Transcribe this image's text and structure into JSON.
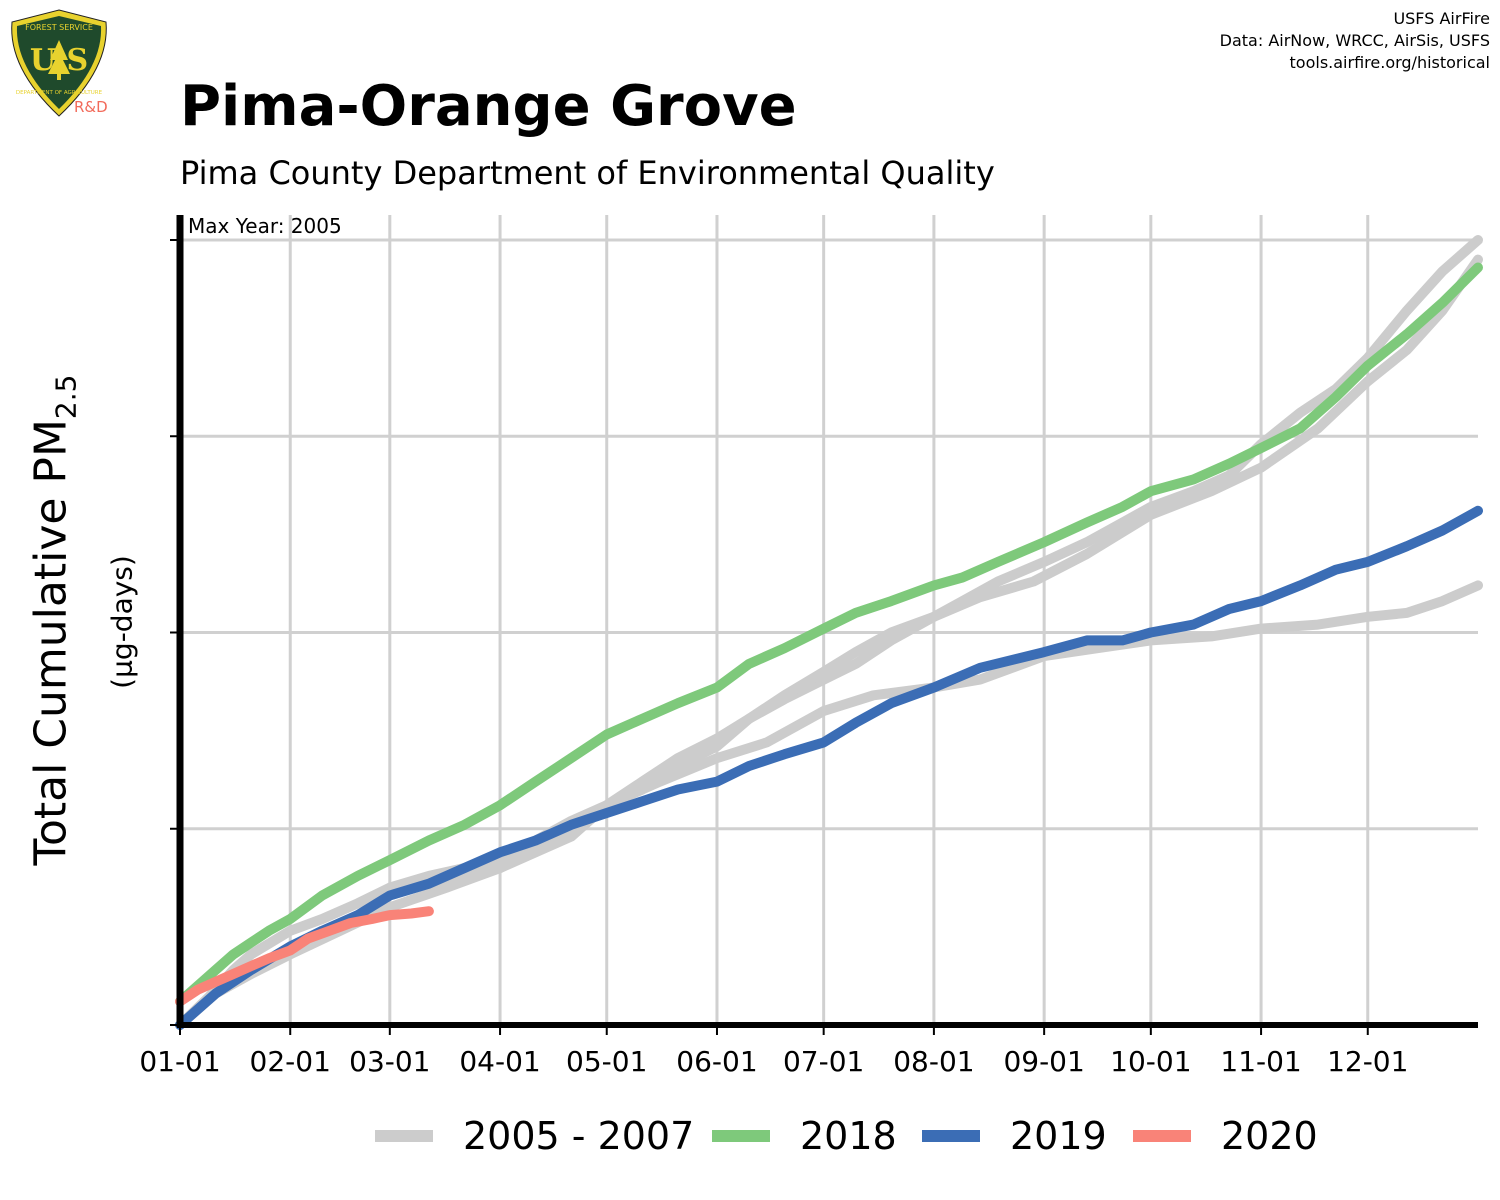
{
  "header": {
    "title": "Pima-Orange Grove",
    "subtitle": "Pima County Department of Environmental Quality"
  },
  "logo": {
    "top_text": "FOREST SERVICE",
    "initials": "U S",
    "bottom_text": "DEPARTMENT OF AGRICULTURE",
    "badge": "R&D",
    "shield_color": "#1f4a2c",
    "border_color": "#e8d22e"
  },
  "credits": {
    "line1": "USFS AirFire",
    "line2": "Data: AirNow, WRCC, AirSis, USFS",
    "line3": "tools.airfire.org/historical"
  },
  "axis": {
    "ylabel_main": "Total Cumulative PM",
    "ylabel_sub": "2.5",
    "yunits": "(µg-days)"
  },
  "chart_data": {
    "type": "line",
    "annotation": "Max Year: 2005",
    "x_tick_labels": [
      "01-01",
      "02-01",
      "03-01",
      "04-01",
      "05-01",
      "06-01",
      "07-01",
      "08-01",
      "09-01",
      "10-01",
      "11-01",
      "12-01"
    ],
    "x_tick_days": [
      0,
      31,
      59,
      90,
      120,
      151,
      181,
      212,
      243,
      273,
      304,
      334
    ],
    "xlim_days": [
      0,
      365
    ],
    "y_tick_labels": [
      "",
      "",
      "",
      "",
      ""
    ],
    "y_ticks_relative": [
      0,
      0.25,
      0.5,
      0.75,
      1.0
    ],
    "ylim_relative": [
      0,
      1.03
    ],
    "y_values_note": "",
    "grid": true,
    "legend_position": "bottom",
    "series": [
      {
        "name": "2005 - 2007",
        "color": "#cccccc",
        "lines": [
          {
            "x": [
              0,
              8,
              15,
              20,
              31,
              40,
              50,
              59,
              70,
              80,
              90,
              100,
              110,
              120,
              130,
              140,
              151,
              160,
              170,
              181,
              190,
              200,
              212,
              220,
              230,
              243,
              255,
              265,
              273,
              285,
              295,
              304,
              315,
              325,
              334,
              345,
              355,
              365
            ],
            "y": [
              0.0,
              0.035,
              0.07,
              0.09,
              0.12,
              0.135,
              0.155,
              0.175,
              0.19,
              0.2,
              0.21,
              0.235,
              0.26,
              0.28,
              0.31,
              0.34,
              0.365,
              0.39,
              0.415,
              0.44,
              0.46,
              0.49,
              0.52,
              0.54,
              0.565,
              0.59,
              0.615,
              0.64,
              0.66,
              0.68,
              0.7,
              0.74,
              0.78,
              0.81,
              0.85,
              0.91,
              0.96,
              1.0
            ]
          },
          {
            "x": [
              0,
              10,
              20,
              31,
              40,
              50,
              59,
              70,
              80,
              90,
              100,
              110,
              120,
              130,
              140,
              151,
              160,
              170,
              181,
              190,
              200,
              212,
              225,
              240,
              255,
              273,
              290,
              304,
              320,
              334,
              345,
              355,
              365
            ],
            "y": [
              0.0,
              0.04,
              0.07,
              0.1,
              0.115,
              0.14,
              0.165,
              0.18,
              0.19,
              0.2,
              0.22,
              0.24,
              0.28,
              0.3,
              0.33,
              0.355,
              0.39,
              0.42,
              0.45,
              0.475,
              0.5,
              0.52,
              0.545,
              0.565,
              0.6,
              0.65,
              0.68,
              0.71,
              0.76,
              0.82,
              0.86,
              0.91,
              0.975
            ]
          },
          {
            "x": [
              0,
              10,
              20,
              31,
              45,
              59,
              75,
              90,
              105,
              120,
              135,
              151,
              165,
              181,
              195,
              212,
              225,
              243,
              258,
              273,
              290,
              304,
              320,
              334,
              345,
              355,
              365
            ],
            "y": [
              0.0,
              0.04,
              0.065,
              0.09,
              0.12,
              0.15,
              0.175,
              0.2,
              0.235,
              0.28,
              0.31,
              0.34,
              0.36,
              0.4,
              0.42,
              0.43,
              0.44,
              0.47,
              0.48,
              0.49,
              0.495,
              0.505,
              0.51,
              0.52,
              0.525,
              0.54,
              0.56
            ]
          }
        ]
      },
      {
        "name": "2018",
        "color": "#7ec97b",
        "lines": [
          {
            "x": [
              0,
              5,
              10,
              15,
              20,
              25,
              31,
              40,
              50,
              59,
              70,
              80,
              90,
              100,
              110,
              120,
              130,
              140,
              151,
              160,
              170,
              181,
              190,
              200,
              212,
              220,
              230,
              243,
              255,
              265,
              273,
              285,
              295,
              304,
              315,
              325,
              334,
              345,
              355,
              365
            ],
            "y": [
              0.03,
              0.05,
              0.07,
              0.09,
              0.105,
              0.12,
              0.135,
              0.165,
              0.19,
              0.21,
              0.235,
              0.255,
              0.28,
              0.31,
              0.34,
              0.37,
              0.39,
              0.41,
              0.43,
              0.46,
              0.48,
              0.505,
              0.525,
              0.54,
              0.56,
              0.57,
              0.59,
              0.615,
              0.64,
              0.66,
              0.68,
              0.695,
              0.715,
              0.735,
              0.76,
              0.8,
              0.84,
              0.88,
              0.92,
              0.965
            ]
          }
        ]
      },
      {
        "name": "2019",
        "color": "#3b6db5",
        "lines": [
          {
            "x": [
              0,
              10,
              20,
              31,
              40,
              50,
              59,
              70,
              80,
              90,
              100,
              110,
              120,
              130,
              140,
              151,
              160,
              170,
              181,
              190,
              200,
              212,
              225,
              243,
              255,
              265,
              273,
              285,
              295,
              304,
              315,
              325,
              334,
              345,
              355,
              365
            ],
            "y": [
              0.0,
              0.04,
              0.07,
              0.1,
              0.12,
              0.14,
              0.165,
              0.18,
              0.2,
              0.22,
              0.235,
              0.255,
              0.27,
              0.285,
              0.3,
              0.31,
              0.33,
              0.345,
              0.36,
              0.385,
              0.41,
              0.43,
              0.455,
              0.475,
              0.49,
              0.49,
              0.5,
              0.51,
              0.53,
              0.54,
              0.56,
              0.58,
              0.59,
              0.61,
              0.63,
              0.655
            ]
          }
        ]
      },
      {
        "name": "2020",
        "color": "#f98378",
        "lines": [
          {
            "x": [
              0,
              5,
              10,
              15,
              20,
              25,
              31,
              36,
              42,
              48,
              54,
              59,
              65,
              70
            ],
            "y": [
              0.03,
              0.045,
              0.055,
              0.065,
              0.075,
              0.085,
              0.095,
              0.11,
              0.12,
              0.13,
              0.135,
              0.14,
              0.142,
              0.145
            ]
          }
        ]
      }
    ]
  }
}
